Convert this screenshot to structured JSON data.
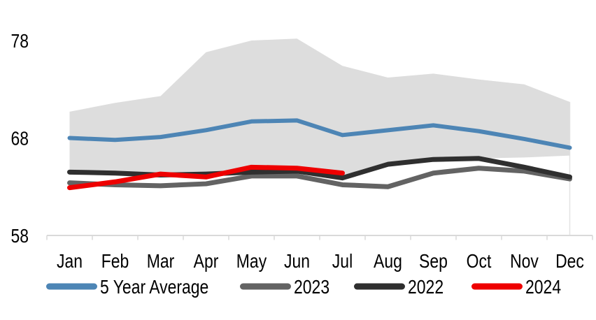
{
  "title": "",
  "colors": {
    "background": "#FFFFFF",
    "band": "#DDDDDD",
    "axis": "#D9D9D9",
    "gridline": "#E3E3E3",
    "text": "#000000"
  },
  "chart_data": {
    "type": "line",
    "title": "",
    "xlabel": "",
    "ylabel": "",
    "categories": [
      "Jan",
      "Feb",
      "Mar",
      "Apr",
      "May",
      "Jun",
      "Jul",
      "Aug",
      "Sep",
      "Oct",
      "Nov",
      "Dec"
    ],
    "y_ticks": [
      58,
      68,
      78
    ],
    "ylim": [
      58,
      80
    ],
    "grid": false,
    "legend_position": "bottom",
    "band": {
      "description": "5 year min-max range",
      "color": "#DDDDDD",
      "top": [
        70.7,
        71.6,
        72.3,
        76.8,
        78.0,
        78.2,
        75.4,
        74.2,
        74.6,
        74.0,
        73.5,
        71.7
      ],
      "bottom": [
        64.4,
        64.2,
        64.1,
        63.9,
        64.5,
        64.5,
        63.9,
        65.3,
        65.8,
        65.9,
        66.0,
        66.2
      ]
    },
    "series": [
      {
        "name": "5 Year Average",
        "color": "#4D85B5",
        "width": 6,
        "values": [
          68.0,
          67.8,
          68.1,
          68.8,
          69.7,
          69.8,
          68.3,
          68.8,
          69.3,
          68.7,
          67.9,
          67.0
        ]
      },
      {
        "name": "2023",
        "color": "#636363",
        "width": 7,
        "values": [
          63.4,
          63.2,
          63.1,
          63.3,
          64.1,
          64.1,
          63.2,
          63.0,
          64.4,
          64.9,
          64.6,
          63.8
        ]
      },
      {
        "name": "2022",
        "color": "#2F2F2F",
        "width": 7,
        "values": [
          64.5,
          64.4,
          64.2,
          64.3,
          64.5,
          64.6,
          63.9,
          65.3,
          65.8,
          65.9,
          65.0,
          64.0
        ]
      },
      {
        "name": "2024",
        "color": "#EE0000",
        "width": 7,
        "values": [
          62.9,
          63.5,
          64.3,
          64.0,
          65.0,
          64.9,
          64.4,
          null,
          null,
          null,
          null,
          null
        ]
      }
    ]
  }
}
